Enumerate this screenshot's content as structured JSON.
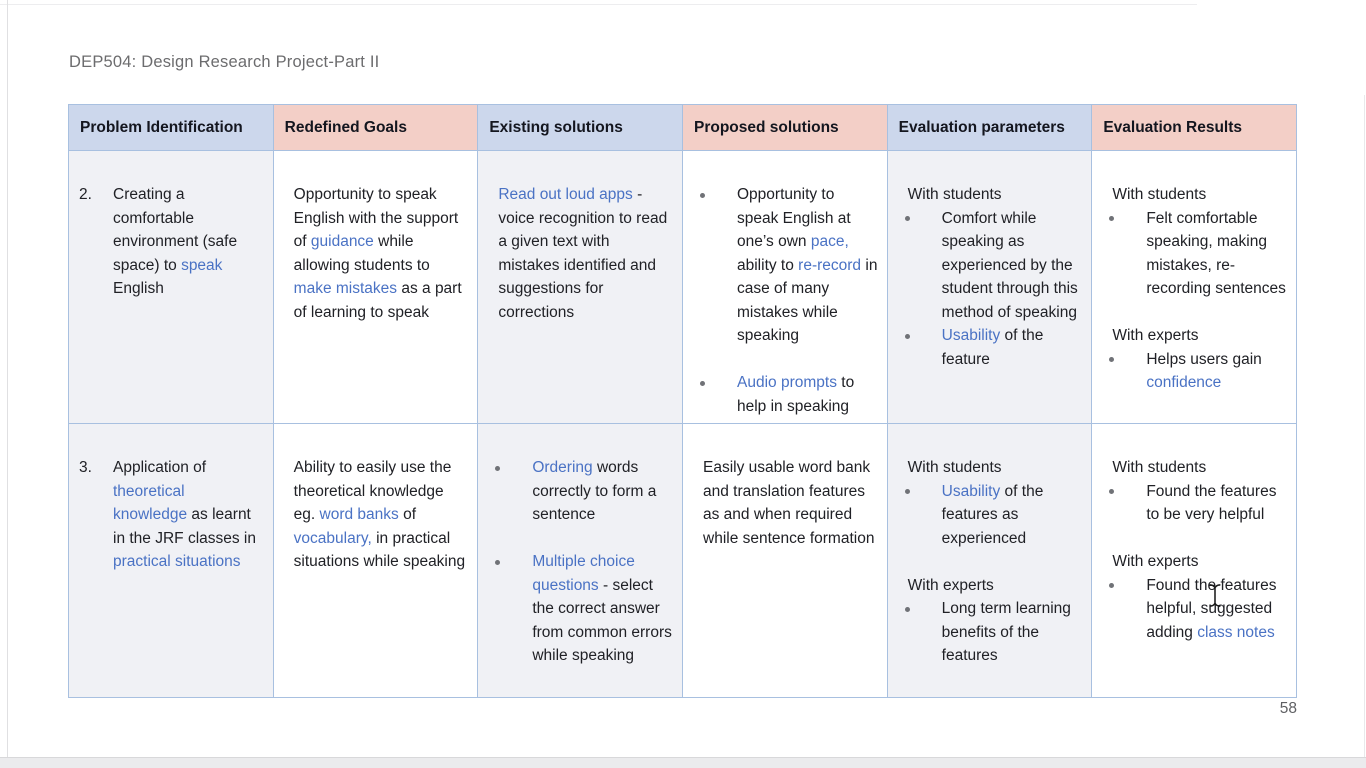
{
  "page": {
    "title": "DEP504: Design Research Project-Part II",
    "page_number": "58"
  },
  "colors": {
    "header_blue": "#ccd7ec",
    "header_pink": "#f3cfc7",
    "shade": "#f0f1f5",
    "border": "#a8c0e0",
    "link": "#4a72c4",
    "text": "#202126",
    "header_text": "#14161f",
    "muted": "#6c6c6e",
    "bullet": "#707277"
  },
  "icons": {
    "bullet": "bullet-dot",
    "cursor": "text-cursor-i-beam"
  },
  "table": {
    "headers": [
      {
        "label": "Problem Identification",
        "bg": "blue"
      },
      {
        "label": "Redefined Goals",
        "bg": "pink"
      },
      {
        "label": "Existing solutions",
        "bg": "blue"
      },
      {
        "label": "Proposed solutions",
        "bg": "pink"
      },
      {
        "label": "Evaluation parameters",
        "bg": "blue"
      },
      {
        "label": "Evaluation Results",
        "bg": "pink"
      }
    ],
    "rows": [
      {
        "cells": [
          {
            "shade": true,
            "number": "2.",
            "blocks": [
              {
                "type": "p",
                "segments": [
                  {
                    "t": "Creating a comfortable environment (safe space) to "
                  },
                  {
                    "t": "speak",
                    "link": true
                  },
                  {
                    "t": " English"
                  }
                ]
              }
            ]
          },
          {
            "shade": false,
            "blocks": [
              {
                "type": "p",
                "segments": [
                  {
                    "t": "Opportunity to speak English with the support of "
                  },
                  {
                    "t": "guidance",
                    "link": true
                  },
                  {
                    "t": " while allowing students to "
                  },
                  {
                    "t": "make mistakes",
                    "link": true
                  },
                  {
                    "t": " as a part of learning to speak"
                  }
                ]
              }
            ]
          },
          {
            "shade": true,
            "blocks": [
              {
                "type": "p",
                "segments": [
                  {
                    "t": "Read out loud apps",
                    "link": true
                  },
                  {
                    "t": " - voice recognition to read a given text with mistakes identified and suggestions for corrections"
                  }
                ]
              }
            ]
          },
          {
            "shade": false,
            "blocks": [
              {
                "type": "bullet",
                "segments": [
                  {
                    "t": "Opportunity to speak English at one’s own "
                  },
                  {
                    "t": "pace,",
                    "link": true
                  },
                  {
                    "t": " ability to "
                  },
                  {
                    "t": "re-record",
                    "link": true
                  },
                  {
                    "t": " in case of many mistakes while speaking"
                  }
                ]
              },
              {
                "type": "spacer"
              },
              {
                "type": "bullet",
                "segments": [
                  {
                    "t": "Audio prompts",
                    "link": true
                  },
                  {
                    "t": " to help in speaking"
                  }
                ]
              }
            ]
          },
          {
            "shade": true,
            "blocks": [
              {
                "type": "p",
                "segments": [
                  {
                    "t": "With students"
                  }
                ]
              },
              {
                "type": "bullet",
                "segments": [
                  {
                    "t": "Comfort while speaking as experienced by the student through this method of speaking"
                  }
                ]
              },
              {
                "type": "bullet",
                "segments": [
                  {
                    "t": "Usability",
                    "link": true
                  },
                  {
                    "t": " of the feature"
                  }
                ]
              }
            ]
          },
          {
            "shade": false,
            "blocks": [
              {
                "type": "p",
                "segments": [
                  {
                    "t": "With students"
                  }
                ]
              },
              {
                "type": "bullet",
                "segments": [
                  {
                    "t": "Felt comfortable speaking, making mistakes, re-recording sentences"
                  }
                ]
              },
              {
                "type": "spacer"
              },
              {
                "type": "p",
                "segments": [
                  {
                    "t": "With experts"
                  }
                ]
              },
              {
                "type": "bullet",
                "segments": [
                  {
                    "t": "Helps users gain "
                  },
                  {
                    "t": "confidence",
                    "link": true
                  }
                ]
              }
            ]
          }
        ]
      },
      {
        "cells": [
          {
            "shade": true,
            "number": "3.",
            "blocks": [
              {
                "type": "p",
                "segments": [
                  {
                    "t": "Application of "
                  },
                  {
                    "t": "theoretical knowledge",
                    "link": true
                  },
                  {
                    "t": " as learnt in the JRF classes in "
                  },
                  {
                    "t": "practical situations",
                    "link": true
                  }
                ]
              }
            ]
          },
          {
            "shade": false,
            "blocks": [
              {
                "type": "p",
                "segments": [
                  {
                    "t": "Ability to easily use the theoretical knowledge eg. "
                  },
                  {
                    "t": "word banks",
                    "link": true
                  },
                  {
                    "t": " of "
                  },
                  {
                    "t": "vocabulary,",
                    "link": true
                  },
                  {
                    "t": " in practical situations while speaking"
                  }
                ]
              }
            ]
          },
          {
            "shade": true,
            "blocks": [
              {
                "type": "bullet",
                "segments": [
                  {
                    "t": "Ordering",
                    "link": true
                  },
                  {
                    "t": " words correctly to form a sentence"
                  }
                ]
              },
              {
                "type": "spacer"
              },
              {
                "type": "bullet",
                "segments": [
                  {
                    "t": "Multiple choice questions",
                    "link": true
                  },
                  {
                    "t": " - select the correct answer from common errors while speaking"
                  }
                ]
              }
            ]
          },
          {
            "shade": false,
            "blocks": [
              {
                "type": "p",
                "segments": [
                  {
                    "t": "Easily usable word bank and translation features as and when required while sentence formation"
                  }
                ]
              }
            ]
          },
          {
            "shade": true,
            "blocks": [
              {
                "type": "p",
                "segments": [
                  {
                    "t": "With students"
                  }
                ]
              },
              {
                "type": "bullet",
                "segments": [
                  {
                    "t": "Usability",
                    "link": true
                  },
                  {
                    "t": " of the features as experienced"
                  }
                ]
              },
              {
                "type": "spacer"
              },
              {
                "type": "p",
                "segments": [
                  {
                    "t": "With experts"
                  }
                ]
              },
              {
                "type": "bullet",
                "segments": [
                  {
                    "t": "Long term learning benefits of the features"
                  }
                ]
              }
            ]
          },
          {
            "shade": false,
            "blocks": [
              {
                "type": "p",
                "segments": [
                  {
                    "t": "With students"
                  }
                ]
              },
              {
                "type": "bullet",
                "segments": [
                  {
                    "t": "Found the features to be very helpful"
                  }
                ]
              },
              {
                "type": "spacer"
              },
              {
                "type": "p",
                "segments": [
                  {
                    "t": "With experts"
                  }
                ]
              },
              {
                "type": "bullet",
                "segments": [
                  {
                    "t": "Found the features helpful, suggested adding "
                  },
                  {
                    "t": "class notes",
                    "link": true
                  }
                ]
              }
            ]
          }
        ]
      }
    ]
  }
}
